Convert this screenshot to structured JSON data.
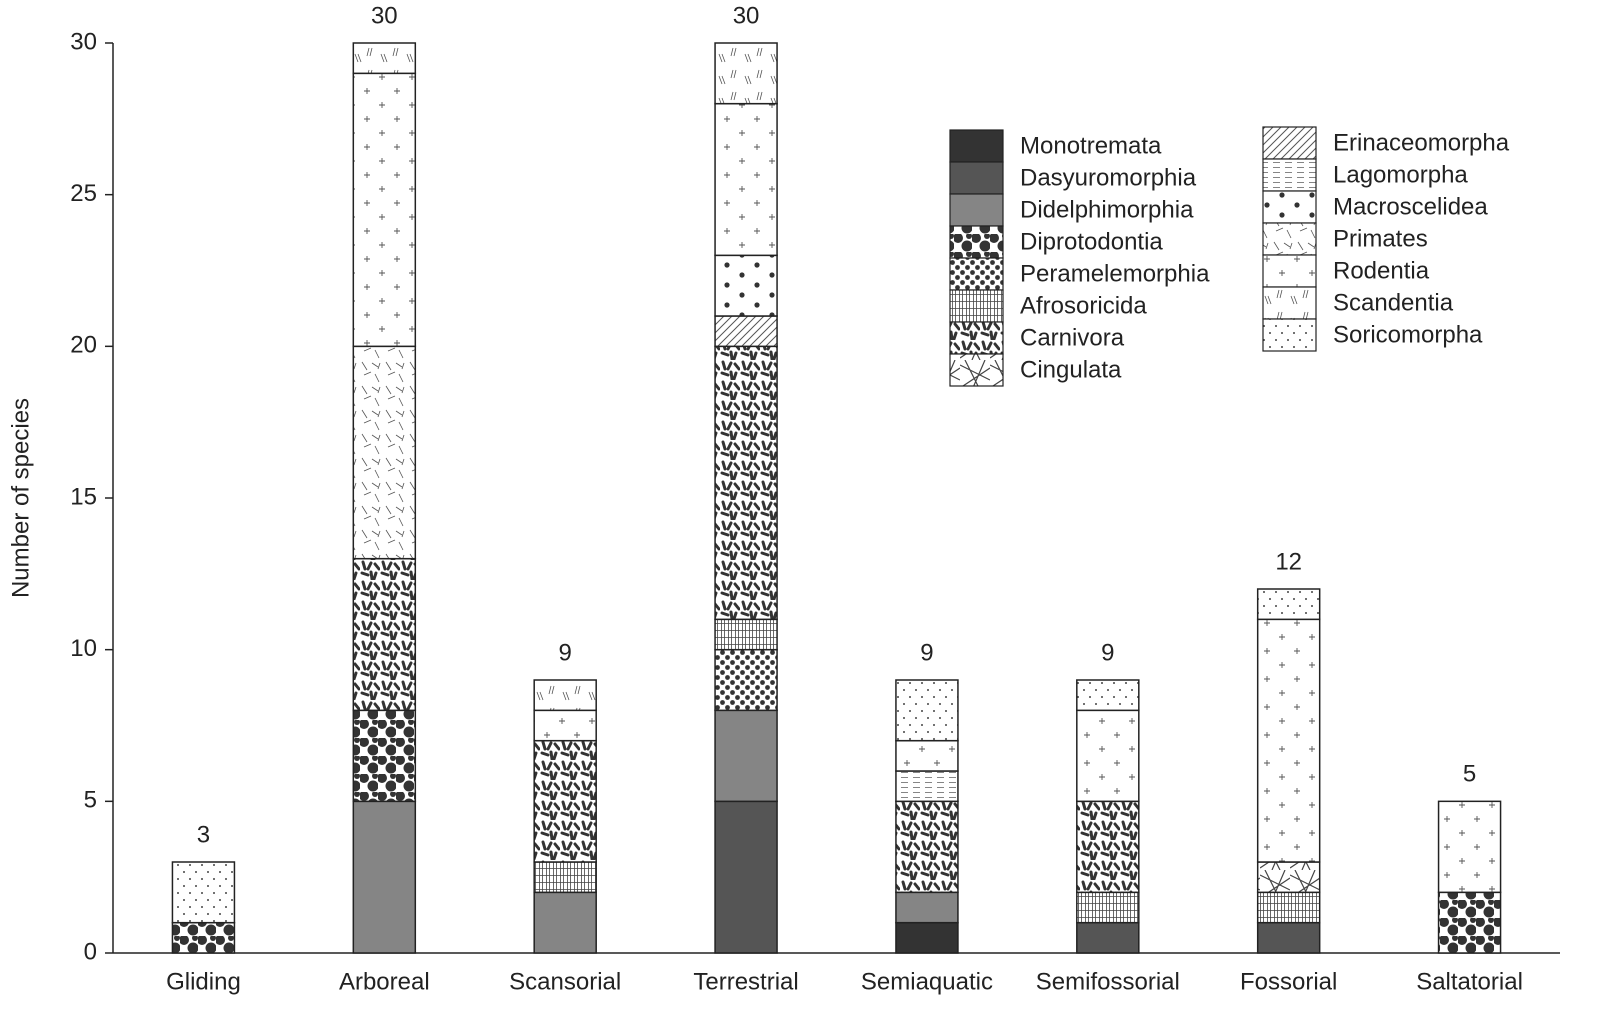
{
  "chart_data": {
    "type": "stacked-bar",
    "y_label": "Number of species",
    "categories": [
      "Gliding",
      "Arboreal",
      "Scansorial",
      "Terrestrial",
      "Semiaquatic",
      "Semifossorial",
      "Fossorial",
      "Saltatorial"
    ],
    "series": [
      {
        "name": "Monotremata",
        "color": "#333333",
        "values": [
          0,
          0,
          0,
          0,
          1,
          0,
          0,
          0
        ]
      },
      {
        "name": "Dasyuromorphia",
        "color": "#555555",
        "values": [
          0,
          0,
          0,
          5,
          0,
          1,
          1,
          0
        ]
      },
      {
        "name": "Didelphimorphia",
        "color": "#858585",
        "values": [
          0,
          5,
          2,
          3,
          1,
          0,
          0,
          0
        ]
      },
      {
        "name": "Diprotodontia",
        "color": "#ffffff",
        "values": [
          1,
          3,
          0,
          0,
          0,
          0,
          0,
          2
        ]
      },
      {
        "name": "Peramelemorphia",
        "color": "#ffffff",
        "values": [
          0,
          0,
          0,
          2,
          0,
          0,
          0,
          0
        ]
      },
      {
        "name": "Afrosoricida",
        "color": "#ffffff",
        "values": [
          0,
          0,
          1,
          1,
          0,
          1,
          1,
          0
        ]
      },
      {
        "name": "Carnivora",
        "color": "#ffffff",
        "values": [
          0,
          5,
          4,
          9,
          3,
          3,
          0,
          0
        ]
      },
      {
        "name": "Cingulata",
        "color": "#ffffff",
        "values": [
          0,
          0,
          0,
          0,
          0,
          0,
          1,
          0
        ]
      },
      {
        "name": "Erinaceomorpha",
        "color": "#ffffff",
        "values": [
          0,
          0,
          0,
          1,
          0,
          0,
          0,
          0
        ]
      },
      {
        "name": "Lagomorpha",
        "color": "#ffffff",
        "values": [
          0,
          0,
          0,
          0,
          1,
          0,
          0,
          0
        ]
      },
      {
        "name": "Macroscelidea",
        "color": "#ffffff",
        "values": [
          0,
          0,
          0,
          2,
          0,
          0,
          0,
          0
        ]
      },
      {
        "name": "Primates",
        "color": "#ffffff",
        "values": [
          0,
          7,
          0,
          0,
          0,
          0,
          0,
          0
        ]
      },
      {
        "name": "Rodentia",
        "color": "#ffffff",
        "values": [
          0,
          9,
          1,
          5,
          1,
          3,
          8,
          3
        ]
      },
      {
        "name": "Scandentia",
        "color": "#ffffff",
        "values": [
          0,
          1,
          1,
          2,
          0,
          0,
          0,
          0
        ]
      },
      {
        "name": "Soricomorpha",
        "color": "#ffffff",
        "values": [
          2,
          0,
          0,
          0,
          2,
          1,
          1,
          0
        ]
      }
    ],
    "totals": [
      3,
      30,
      9,
      30,
      9,
      9,
      12,
      5
    ],
    "ylim": [
      0,
      30
    ],
    "yticks": [
      0,
      5,
      10,
      15,
      20,
      25,
      30
    ],
    "grid": false
  }
}
